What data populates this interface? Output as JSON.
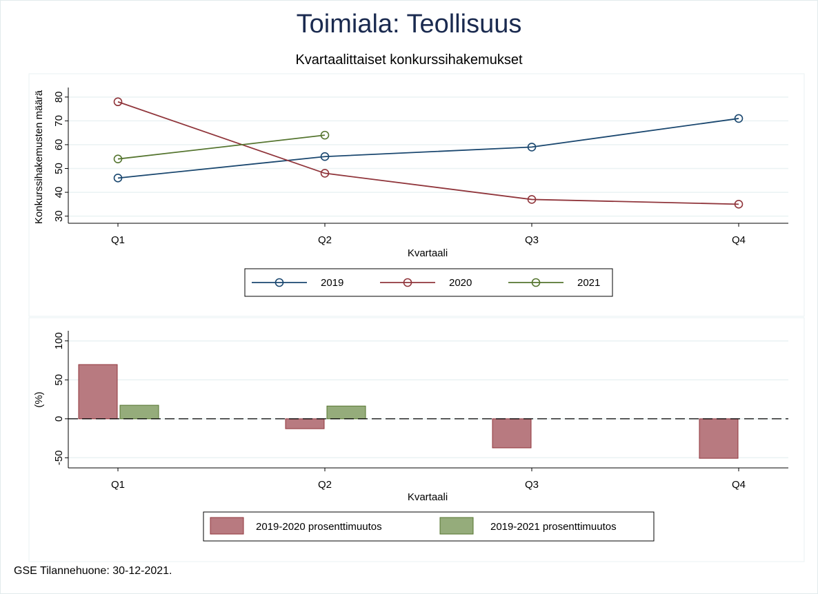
{
  "title": "Toimiala: Teollisuus",
  "subtitle": "Kvartaalittaiset konkurssihakemukset",
  "footer": "GSE Tilannehuone: 30-12-2021.",
  "colors": {
    "s2019": "#1a476f",
    "s2020": "#90353b",
    "s2021": "#55752f",
    "bar2020": "#b87a80",
    "bar2021": "#95ac7b",
    "grid": "#eaf2f3"
  },
  "chart_data": [
    {
      "type": "line",
      "categories": [
        "Q1",
        "Q2",
        "Q3",
        "Q4"
      ],
      "series": [
        {
          "name": "2019",
          "values": [
            46,
            55,
            59,
            71
          ]
        },
        {
          "name": "2020",
          "values": [
            78,
            48,
            37,
            35
          ]
        },
        {
          "name": "2021",
          "values": [
            54,
            64,
            null,
            null
          ]
        }
      ],
      "xlabel": "Kvartaali",
      "ylabel": "Konkurssihakemusten määrä",
      "ylim": [
        27,
        84
      ],
      "yticks": [
        "30",
        "40",
        "50",
        "60",
        "70",
        "80"
      ],
      "grid": true,
      "legend": "bottom"
    },
    {
      "type": "bar",
      "categories": [
        "Q1",
        "Q2",
        "Q3",
        "Q4"
      ],
      "series": [
        {
          "name": "2019-2020 prosenttimuutos",
          "values": [
            69.6,
            -12.7,
            -37.3,
            -50.7
          ]
        },
        {
          "name": "2019-2021 prosenttimuutos",
          "values": [
            17.4,
            16.4,
            null,
            null
          ]
        }
      ],
      "xlabel": "Kvartaali",
      "ylabel": "(%)",
      "ylim": [
        -63,
        113
      ],
      "yticks": [
        "-50",
        "0",
        "50",
        "100"
      ],
      "grid": true,
      "legend": "bottom"
    }
  ]
}
